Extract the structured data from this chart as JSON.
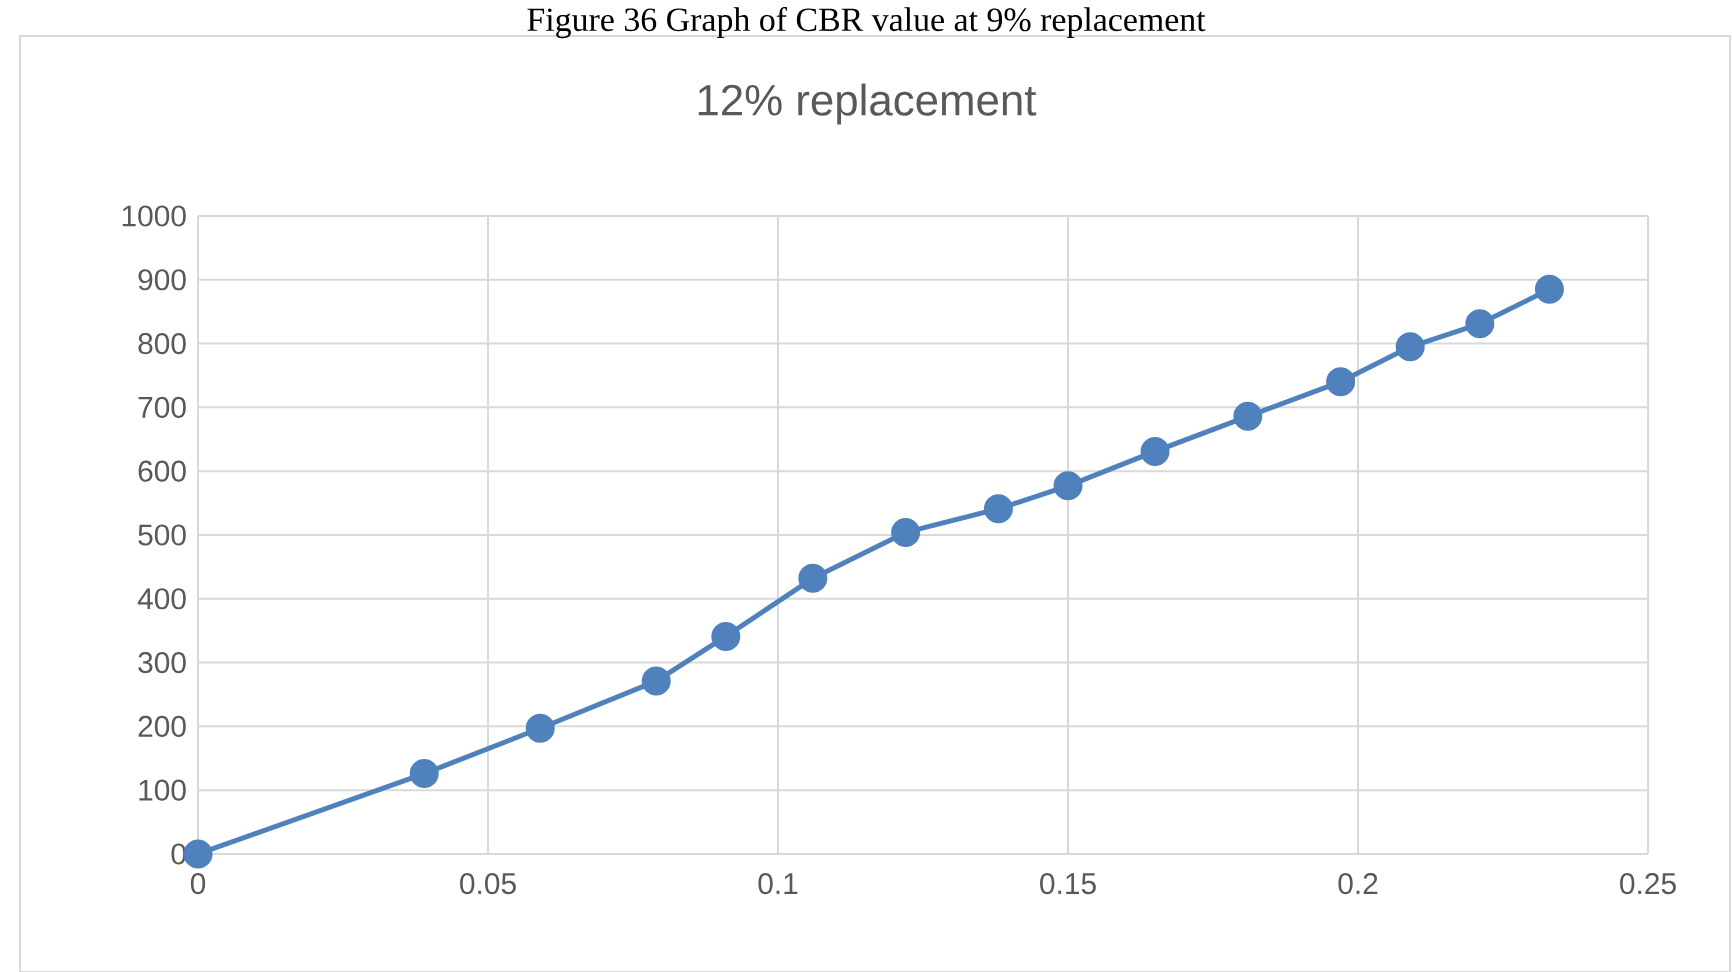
{
  "chart_data": {
    "type": "line",
    "title": "12% replacement",
    "annotations": [
      "Figure 36 Graph of CBR value at 9% replacement"
    ],
    "x": [
      0,
      0.039,
      0.059,
      0.079,
      0.091,
      0.106,
      0.122,
      0.138,
      0.15,
      0.165,
      0.181,
      0.197,
      0.209,
      0.221,
      0.233
    ],
    "series": [
      {
        "color": "#4f81bd",
        "values": [
          0,
          126,
          197,
          271,
          341,
          432,
          504,
          541,
          577,
          631,
          686,
          740,
          795,
          831,
          885
        ]
      }
    ],
    "xlim": [
      0,
      0.25
    ],
    "xticks": [
      {
        "value": 0,
        "label": "0"
      },
      {
        "value": 0.05,
        "label": "0.05"
      },
      {
        "value": 0.1,
        "label": "0.1"
      },
      {
        "value": 0.15,
        "label": "0.15"
      },
      {
        "value": 0.2,
        "label": "0.2"
      },
      {
        "value": 0.25,
        "label": "0.25"
      }
    ],
    "ylim": [
      0,
      1000
    ],
    "yticks": [
      0,
      100,
      200,
      300,
      400,
      500,
      600,
      700,
      800,
      900,
      1000
    ],
    "grid": true,
    "marker": "circle",
    "line_style": "solid"
  }
}
